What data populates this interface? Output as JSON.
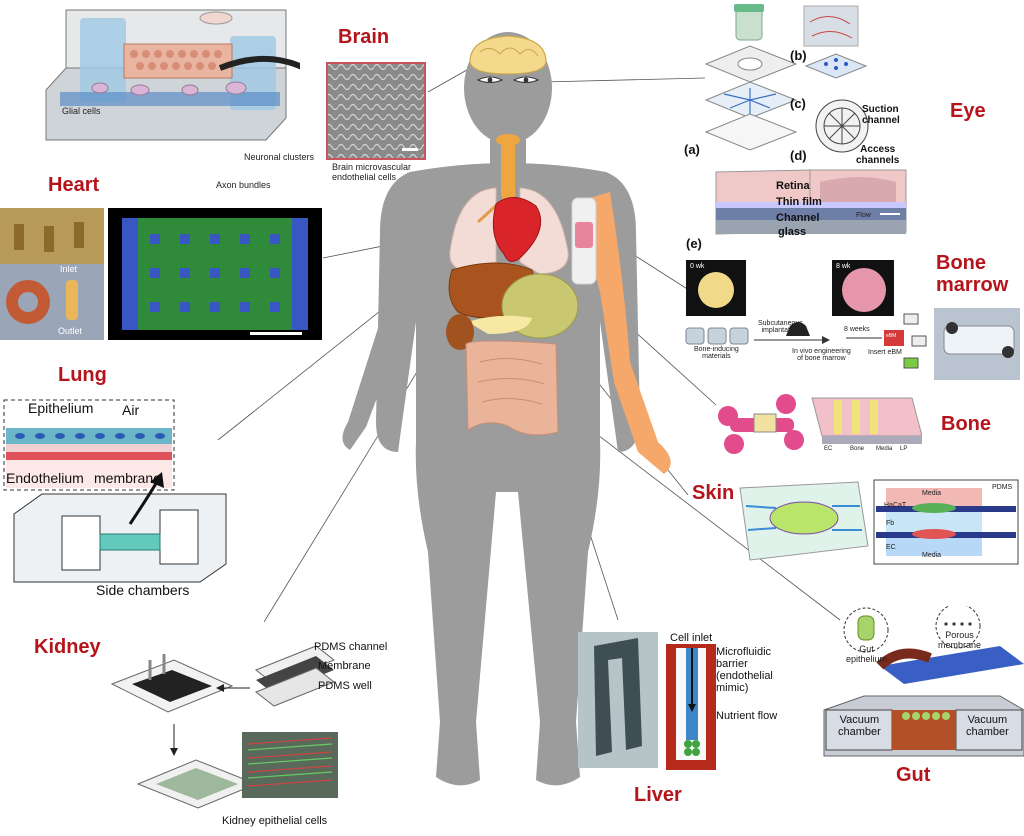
{
  "organs": {
    "brain": "Brain",
    "eye": "Eye",
    "heart": "Heart",
    "bone_marrow_line1": "Bone",
    "bone_marrow_line2": "marrow",
    "lung": "Lung",
    "bone": "Bone",
    "skin": "Skin",
    "kidney": "Kidney",
    "liver": "Liver",
    "gut": "Gut"
  },
  "brain_panel": {
    "glial": "Glial cells",
    "neuronal": "Neuronal clusters",
    "axon": "Axon bundles",
    "bmec_line1": "Brain microvascular",
    "bmec_line2": "endothelial cells"
  },
  "eye_panel": {
    "a": "(a)",
    "b": "(b)",
    "c": "(c)",
    "d": "(d)",
    "e": "(e)",
    "suction_line1": "Suction",
    "suction_line2": "channel",
    "access_line1": "Access",
    "access_line2": "channels",
    "retina": "Retina",
    "thin_film": "Thin film",
    "channel": "Channel",
    "flow": "Flow",
    "glass": "glass"
  },
  "heart_panel": {
    "inlet": "Inlet",
    "outlet": "Outlet"
  },
  "bone_marrow_panel": {
    "wk0": "0 wk",
    "wk8": "8 wk",
    "materials_line1": "Bone-inducing",
    "materials_line2": "materials",
    "implant_line1": "Subcutaneous",
    "implant_line2": "implantation",
    "weeks": "8 weeks",
    "invivo_line1": "In vivo engineering",
    "invivo_line2": "of bone marrow",
    "insert": "Insert eBM",
    "ebm": "eBM"
  },
  "lung_panel": {
    "epithelium": "Epithelium",
    "air": "Air",
    "endothelium": "Endothelium",
    "membrane": "membrane",
    "side_chambers": "Side chambers"
  },
  "bone_panel": {
    "ec": "EC",
    "bone": "Bone",
    "media": "Media",
    "lp": "LP"
  },
  "skin_panel": {
    "media_top": "Media",
    "pdms": "PDMS",
    "hacat": "HaCaT",
    "fb": "Fb",
    "ec": "EC",
    "media_bottom": "Media"
  },
  "kidney_panel": {
    "pdms_channel": "PDMS channel",
    "membrane": "Membrane",
    "pdms_well": "PDMS well",
    "cells": "Kidney epithelial cells"
  },
  "liver_panel": {
    "cell_inlet": "Cell inlet",
    "barrier_line1": "Microfluidic",
    "barrier_line2": "barrier",
    "barrier_line3": "(endothelial",
    "barrier_line4": "mimic)",
    "nutrient": "Nutrient flow"
  },
  "gut_panel": {
    "gut_line1": "Gut",
    "gut_line2": "epithelium",
    "porous_line1": "Porous",
    "porous_line2": "membrane",
    "vac_left_line1": "Vacuum",
    "vac_left_line2": "chamber",
    "vac_right_line1": "Vacuum",
    "vac_right_line2": "chamber"
  }
}
